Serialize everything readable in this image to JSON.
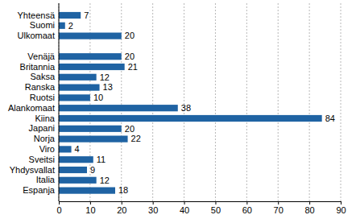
{
  "chart_data": {
    "type": "bar",
    "orientation": "horizontal",
    "categories": [
      "Yhteensä",
      "Suomi",
      "Ulkomaat",
      null,
      "Venäjä",
      "Britannia",
      "Saksa",
      "Ranska",
      "Ruotsi",
      "Alankomaat",
      "Kiina",
      "Japani",
      "Norja",
      "Viro",
      "Sveitsi",
      "Yhdysvallat",
      "Italia",
      "Espanja"
    ],
    "values": [
      7,
      2,
      20,
      null,
      20,
      21,
      12,
      13,
      10,
      38,
      84,
      20,
      22,
      4,
      11,
      9,
      12,
      18
    ],
    "color": "#1f63a3",
    "xlim": [
      0,
      90
    ],
    "xticks": [
      0,
      10,
      20,
      30,
      40,
      50,
      60,
      70,
      80,
      90
    ],
    "grid": true,
    "data_labels": true
  }
}
